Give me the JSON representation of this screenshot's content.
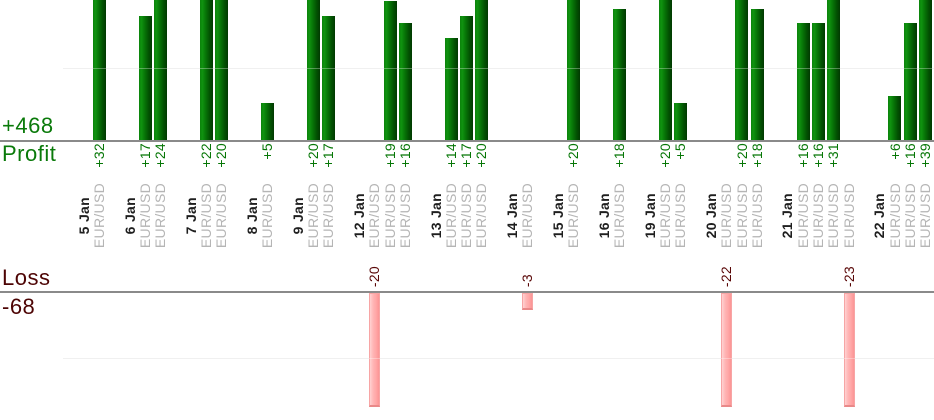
{
  "left_panel": {
    "profit_total": "+468",
    "profit_label": "Profit",
    "loss_label": "Loss",
    "loss_total": "-68"
  },
  "colors": {
    "profit_text": "#0a7a0a",
    "profit_value_text": "#077707",
    "loss_text": "#4d0404",
    "loss_value_text": "#5a0808",
    "date_text": "#1f1f1f",
    "instrument_text": "#b5b5b5",
    "profit_bar": "#077407",
    "loss_bar": "#ffaaaa",
    "baseline": "#8a8a8a",
    "gridline": "#e9e9e9"
  },
  "chart_data": {
    "type": "bar",
    "title": "",
    "instrument": "EUR/USD",
    "value_prefix_positive": "+",
    "profit_total": 468,
    "loss_total": -68,
    "profit_ylim": [
      0,
      19
    ],
    "loss_ylim": [
      -20,
      0
    ],
    "grid": "on",
    "groups": [
      {
        "date": "5 Jan",
        "trades": [
          32
        ]
      },
      {
        "date": "6 Jan",
        "trades": [
          17,
          24
        ]
      },
      {
        "date": "7 Jan",
        "trades": [
          22,
          20
        ]
      },
      {
        "date": "8 Jan",
        "trades": [
          5
        ]
      },
      {
        "date": "9 Jan",
        "trades": [
          20,
          17
        ]
      },
      {
        "date": "12 Jan",
        "trades": [
          -20,
          19,
          16
        ]
      },
      {
        "date": "13 Jan",
        "trades": [
          14,
          17,
          20
        ]
      },
      {
        "date": "14 Jan",
        "trades": [
          -3
        ]
      },
      {
        "date": "15 Jan",
        "trades": [
          20
        ]
      },
      {
        "date": "16 Jan",
        "trades": [
          18
        ]
      },
      {
        "date": "19 Jan",
        "trades": [
          20,
          5
        ]
      },
      {
        "date": "20 Jan",
        "trades": [
          -22,
          20,
          18
        ]
      },
      {
        "date": "21 Jan",
        "trades": [
          16,
          16,
          31,
          -23
        ]
      },
      {
        "date": "22 Jan",
        "trades": [
          6,
          16,
          39
        ]
      }
    ]
  }
}
